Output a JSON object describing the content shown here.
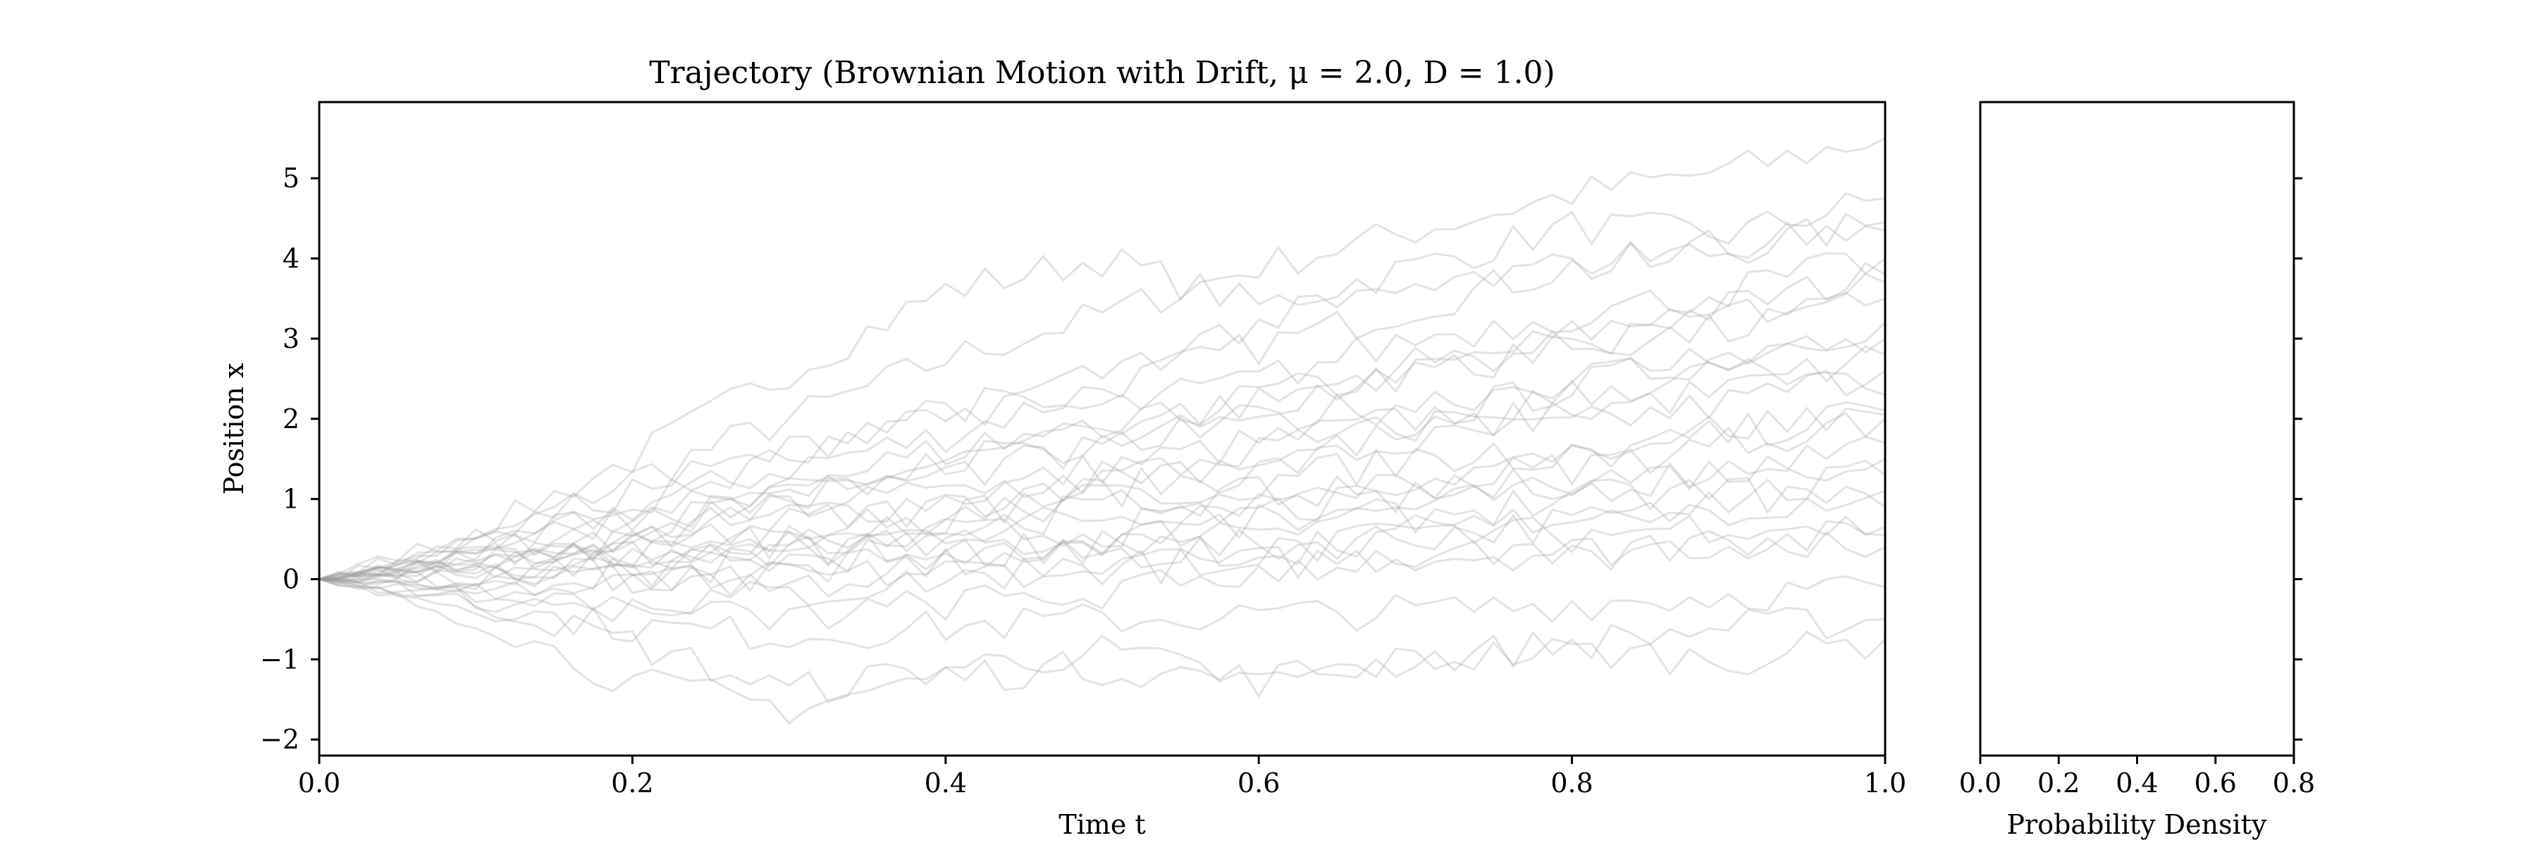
{
  "chart_data": [
    {
      "type": "line",
      "title": "Trajectory (Brownian Motion with Drift, μ = 2.0, D = 1.0)",
      "xlabel": "Time t",
      "ylabel": "Position x",
      "xlim": [
        0.0,
        1.0
      ],
      "ylim": [
        -2.2,
        5.95
      ],
      "xticks": [
        "0.0",
        "0.2",
        "0.4",
        "0.6",
        "0.8",
        "1.0"
      ],
      "xtick_values": [
        0.0,
        0.2,
        0.4,
        0.6,
        0.8,
        1.0
      ],
      "yticks": [
        "−2",
        "−1",
        "0",
        "1",
        "2",
        "3",
        "4",
        "5"
      ],
      "ytick_values": [
        -2,
        -1,
        0,
        1,
        2,
        3,
        4,
        5
      ],
      "grid": false,
      "line_color": "#999999",
      "line_opacity": 0.28,
      "series": [
        {
          "x": [
            0,
            0.1,
            0.2,
            0.3,
            0.4,
            0.5,
            0.6,
            0.7,
            0.8,
            0.9,
            1.0
          ],
          "y": [
            0,
            0.45,
            1.25,
            2.0,
            2.75,
            3.3,
            3.9,
            4.35,
            4.8,
            5.1,
            5.5
          ]
        },
        {
          "x": [
            0,
            0.1,
            0.2,
            0.3,
            0.4,
            0.5,
            0.6,
            0.7,
            0.8,
            0.9,
            1.0
          ],
          "y": [
            0,
            0.6,
            1.5,
            2.6,
            3.6,
            4.0,
            3.4,
            3.9,
            4.4,
            4.3,
            4.75
          ]
        },
        {
          "x": [
            0,
            0.1,
            0.2,
            0.3,
            0.4,
            0.5,
            0.6,
            0.7,
            0.8,
            0.9,
            1.0
          ],
          "y": [
            0,
            0.3,
            0.9,
            1.4,
            1.8,
            2.4,
            2.9,
            3.4,
            3.9,
            4.1,
            4.45
          ]
        },
        {
          "x": [
            0,
            0.1,
            0.2,
            0.3,
            0.4,
            0.5,
            0.6,
            0.7,
            0.8,
            0.9,
            1.0
          ],
          "y": [
            0,
            0.35,
            0.6,
            1.05,
            1.45,
            1.8,
            2.3,
            2.55,
            3.05,
            3.4,
            3.8
          ]
        },
        {
          "x": [
            0,
            0.1,
            0.2,
            0.3,
            0.4,
            0.5,
            0.6,
            0.7,
            0.8,
            0.9,
            1.0
          ],
          "y": [
            0,
            0.2,
            0.5,
            0.8,
            1.0,
            1.4,
            1.7,
            2.0,
            2.4,
            2.8,
            3.2
          ]
        },
        {
          "x": [
            0,
            0.1,
            0.2,
            0.3,
            0.4,
            0.5,
            0.6,
            0.7,
            0.8,
            0.9,
            1.0
          ],
          "y": [
            0,
            0.15,
            0.35,
            0.55,
            0.8,
            1.1,
            1.35,
            1.7,
            1.9,
            2.2,
            2.6
          ]
        },
        {
          "x": [
            0,
            0.1,
            0.2,
            0.3,
            0.4,
            0.5,
            0.6,
            0.7,
            0.8,
            0.9,
            1.0
          ],
          "y": [
            0,
            0.1,
            0.2,
            0.4,
            0.6,
            0.8,
            1.0,
            1.25,
            1.5,
            1.8,
            2.1
          ]
        },
        {
          "x": [
            0,
            0.1,
            0.2,
            0.3,
            0.4,
            0.5,
            0.6,
            0.7,
            0.8,
            0.9,
            1.0
          ],
          "y": [
            0,
            0.05,
            0.1,
            0.25,
            0.4,
            0.5,
            0.7,
            0.9,
            1.1,
            1.4,
            1.7
          ]
        },
        {
          "x": [
            0,
            0.1,
            0.2,
            0.3,
            0.4,
            0.5,
            0.6,
            0.7,
            0.8,
            0.9,
            1.0
          ],
          "y": [
            0,
            0.0,
            0.05,
            0.1,
            0.2,
            0.3,
            0.4,
            0.55,
            0.7,
            0.9,
            1.1
          ]
        },
        {
          "x": [
            0,
            0.1,
            0.2,
            0.3,
            0.4,
            0.5,
            0.6,
            0.7,
            0.8,
            0.9,
            1.0
          ],
          "y": [
            0,
            -0.2,
            -0.1,
            0.0,
            0.1,
            0.15,
            0.2,
            0.3,
            0.35,
            0.45,
            0.55
          ]
        },
        {
          "x": [
            0,
            0.1,
            0.2,
            0.3,
            0.4,
            0.5,
            0.6,
            0.7,
            0.8,
            0.9,
            1.0
          ],
          "y": [
            0,
            -0.35,
            -0.6,
            -0.7,
            -0.6,
            -0.5,
            -0.45,
            -0.4,
            -0.3,
            -0.2,
            -0.1
          ]
        },
        {
          "x": [
            0,
            0.1,
            0.2,
            0.3,
            0.4,
            0.5,
            0.6,
            0.7,
            0.8,
            0.9,
            1.0
          ],
          "y": [
            0,
            -0.5,
            -1.3,
            -1.6,
            -1.2,
            -1.1,
            -1.25,
            -1.0,
            -0.8,
            -0.6,
            -0.5
          ]
        },
        {
          "x": [
            0,
            0.1,
            0.2,
            0.3,
            0.4,
            0.5,
            0.6,
            0.7,
            0.8,
            0.9,
            1.0
          ],
          "y": [
            0,
            -0.3,
            -0.8,
            -1.4,
            -1.1,
            -0.9,
            -1.3,
            -1.0,
            -0.9,
            -1.0,
            -0.75
          ]
        },
        {
          "x": [
            0,
            0.1,
            0.2,
            0.3,
            0.4,
            0.5,
            0.6,
            0.7,
            0.8,
            0.9,
            1.0
          ],
          "y": [
            0,
            0.5,
            1.1,
            1.6,
            2.2,
            2.1,
            2.5,
            3.0,
            3.3,
            3.6,
            4.0
          ]
        },
        {
          "x": [
            0,
            0.1,
            0.2,
            0.3,
            0.4,
            0.5,
            0.6,
            0.7,
            0.8,
            0.9,
            1.0
          ],
          "y": [
            0,
            0.25,
            0.7,
            1.2,
            1.6,
            1.95,
            2.2,
            2.7,
            2.9,
            3.1,
            3.5
          ]
        },
        {
          "x": [
            0,
            0.1,
            0.2,
            0.3,
            0.4,
            0.5,
            0.6,
            0.7,
            0.8,
            0.9,
            1.0
          ],
          "y": [
            0,
            0.3,
            0.4,
            0.7,
            0.9,
            1.3,
            1.5,
            1.8,
            2.1,
            2.35,
            2.8
          ]
        },
        {
          "x": [
            0,
            0.1,
            0.2,
            0.3,
            0.4,
            0.5,
            0.6,
            0.7,
            0.8,
            0.9,
            1.0
          ],
          "y": [
            0,
            -0.1,
            0.3,
            0.5,
            0.6,
            0.9,
            1.05,
            1.2,
            1.4,
            1.7,
            2.0
          ]
        },
        {
          "x": [
            0,
            0.1,
            0.2,
            0.3,
            0.4,
            0.5,
            0.6,
            0.7,
            0.8,
            0.9,
            1.0
          ],
          "y": [
            0,
            0.2,
            0.0,
            0.3,
            0.55,
            0.6,
            0.85,
            1.0,
            1.25,
            1.35,
            1.5
          ]
        },
        {
          "x": [
            0,
            0.1,
            0.2,
            0.3,
            0.4,
            0.5,
            0.6,
            0.7,
            0.8,
            0.9,
            1.0
          ],
          "y": [
            0,
            -0.1,
            -0.3,
            -0.2,
            0.0,
            0.2,
            0.3,
            0.55,
            0.8,
            1.0,
            1.3
          ]
        },
        {
          "x": [
            0,
            0.1,
            0.2,
            0.3,
            0.4,
            0.5,
            0.6,
            0.7,
            0.8,
            0.9,
            1.0
          ],
          "y": [
            0,
            0.4,
            0.8,
            1.0,
            1.3,
            1.6,
            2.0,
            2.2,
            2.5,
            2.8,
            3.0
          ]
        },
        {
          "x": [
            0,
            0.1,
            0.2,
            0.3,
            0.4,
            0.5,
            0.6,
            0.7,
            0.8,
            0.9,
            1.0
          ],
          "y": [
            0,
            0.1,
            0.45,
            0.9,
            1.1,
            1.25,
            1.6,
            1.9,
            2.3,
            2.6,
            2.3
          ]
        },
        {
          "x": [
            0,
            0.1,
            0.2,
            0.3,
            0.4,
            0.5,
            0.6,
            0.7,
            0.8,
            0.9,
            1.0
          ],
          "y": [
            0,
            0.3,
            0.2,
            0.4,
            0.3,
            0.5,
            0.7,
            0.8,
            1.0,
            1.1,
            0.9
          ]
        },
        {
          "x": [
            0,
            0.1,
            0.2,
            0.3,
            0.4,
            0.5,
            0.6,
            0.7,
            0.8,
            0.9,
            1.0
          ],
          "y": [
            0,
            -0.2,
            0.1,
            -0.1,
            0.2,
            0.4,
            0.35,
            0.6,
            0.55,
            0.7,
            0.65
          ]
        },
        {
          "x": [
            0,
            0.1,
            0.2,
            0.3,
            0.4,
            0.5,
            0.6,
            0.7,
            0.8,
            0.9,
            1.0
          ],
          "y": [
            0,
            0.45,
            0.9,
            1.5,
            2.0,
            2.6,
            3.2,
            3.6,
            3.9,
            4.2,
            4.35
          ]
        },
        {
          "x": [
            0,
            0.1,
            0.2,
            0.3,
            0.4,
            0.5,
            0.6,
            0.7,
            0.8,
            0.9,
            1.0
          ],
          "y": [
            0,
            0.2,
            0.6,
            1.0,
            1.5,
            1.7,
            2.1,
            2.5,
            2.9,
            3.3,
            3.7
          ]
        },
        {
          "x": [
            0,
            0.1,
            0.2,
            0.3,
            0.4,
            0.5,
            0.6,
            0.7,
            0.8,
            0.9,
            1.0
          ],
          "y": [
            0,
            0.05,
            0.3,
            0.6,
            0.75,
            1.0,
            1.2,
            1.5,
            1.6,
            1.9,
            2.05
          ]
        },
        {
          "x": [
            0,
            0.1,
            0.2,
            0.3,
            0.4,
            0.5,
            0.6,
            0.7,
            0.8,
            0.9,
            1.0
          ],
          "y": [
            0,
            -0.25,
            -0.4,
            -0.5,
            -0.3,
            -0.2,
            0.1,
            0.3,
            0.2,
            0.5,
            0.4
          ]
        }
      ]
    },
    {
      "type": "area",
      "title": "",
      "xlabel": "Probability Density",
      "ylabel": "",
      "xlim": [
        0.0,
        0.8
      ],
      "ylim": [
        -2.2,
        5.95
      ],
      "xticks": [
        "0.0",
        "0.2",
        "0.4",
        "0.6",
        "0.8"
      ],
      "xtick_values": [
        0.0,
        0.2,
        0.4,
        0.6,
        0.8
      ],
      "ytick_values": [
        -2,
        -1,
        0,
        1,
        2,
        3,
        4,
        5
      ],
      "grid": false,
      "series": []
    }
  ]
}
